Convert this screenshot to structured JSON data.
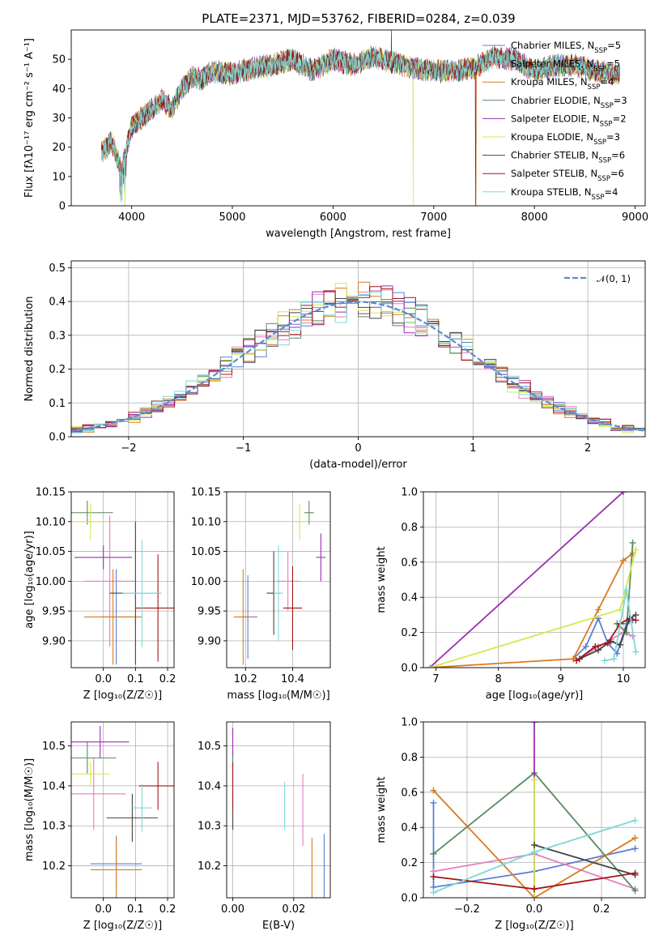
{
  "colors": {
    "chabrier_miles": "#5b7fd6",
    "salpeter_miles": "#e37fbf",
    "kroupa_miles": "#d97a20",
    "chabrier_elodie": "#5a8a5f",
    "salpeter_elodie": "#9a2fb0",
    "kroupa_elodie": "#d4e850",
    "chabrier_stelib": "#444444",
    "salpeter_stelib": "#a31515",
    "kroupa_stelib": "#7fd8d8",
    "normal_curve": "#5b8ad6"
  },
  "chart_data": [
    {
      "id": "spectrum",
      "type": "line",
      "title": "PLATE=2371, MJD=53762, FIBERID=0284, z=0.039",
      "xlabel": "wavelength [Angstrom, rest frame]",
      "ylabel": "Flux [fλ10⁻¹⁷ erg cm⁻² s⁻¹ A⁻¹]",
      "xlim": [
        3400,
        9100
      ],
      "ylim": [
        0,
        60
      ],
      "xticks": [
        "4000",
        "5000",
        "6000",
        "7000",
        "8000",
        "9000"
      ],
      "yticks": [
        "0",
        "10",
        "20",
        "30",
        "40",
        "50"
      ],
      "grid": false,
      "legend_position": "top-right",
      "x": [
        3700,
        3800,
        3900,
        4000,
        4100,
        4200,
        4300,
        4400,
        4500,
        4600,
        4700,
        4800,
        5000,
        5200,
        5400,
        5600,
        5800,
        6000,
        6200,
        6400,
        6600,
        6800,
        7000,
        7200,
        7400,
        7600,
        7800,
        8000,
        8200,
        8400,
        8600,
        8800
      ],
      "y": [
        18,
        22,
        12,
        27,
        30,
        33,
        36,
        33,
        40,
        44,
        43,
        46,
        45,
        47,
        48,
        50,
        46,
        50,
        48,
        51,
        49,
        47,
        46,
        46,
        47,
        51,
        50,
        46,
        48,
        48,
        46,
        45
      ],
      "series": [
        {
          "name": "Chabrier MILES, N",
          "sub": "SSP",
          "suffix": "=5",
          "color_key": "chabrier_miles"
        },
        {
          "name": "Salpeter MILES, N",
          "sub": "SSP",
          "suffix": "=5",
          "color_key": "salpeter_miles"
        },
        {
          "name": "Kroupa MILES, N",
          "sub": "SSP",
          "suffix": "=4",
          "color_key": "kroupa_miles"
        },
        {
          "name": "Chabrier ELODIE, N",
          "sub": "SSP",
          "suffix": "=3",
          "color_key": "chabrier_elodie"
        },
        {
          "name": "Salpeter ELODIE, N",
          "sub": "SSP",
          "suffix": "=2",
          "color_key": "salpeter_elodie"
        },
        {
          "name": "Kroupa ELODIE, N",
          "sub": "SSP",
          "suffix": "=3",
          "color_key": "kroupa_elodie"
        },
        {
          "name": "Chabrier STELIB, N",
          "sub": "SSP",
          "suffix": "=6",
          "color_key": "chabrier_stelib"
        },
        {
          "name": "Salpeter STELIB, N",
          "sub": "SSP",
          "suffix": "=6",
          "color_key": "salpeter_stelib"
        },
        {
          "name": "Kroupa STELIB, N",
          "sub": "SSP",
          "suffix": "=4",
          "color_key": "kroupa_stelib"
        }
      ]
    },
    {
      "id": "residuals",
      "type": "histogram",
      "xlabel": "(data-model)/error",
      "ylabel": "Normed distribution",
      "xlim": [
        -2.5,
        2.5
      ],
      "ylim": [
        0,
        0.52
      ],
      "xticks": [
        "−2",
        "−1",
        "0",
        "1",
        "2"
      ],
      "yticks": [
        "0.0",
        "0.1",
        "0.2",
        "0.3",
        "0.4",
        "0.5"
      ],
      "grid": true,
      "legend_position": "top-right",
      "legend_label": "𝒩(0, 1)",
      "bin_width": 0.1,
      "mean": 0,
      "sigma": 1
    },
    {
      "id": "age_vs_Z",
      "type": "errorbar",
      "xlabel": "Z [log₁₀(Z/Z☉)]",
      "ylabel": "age  [log₁₀(age/yr)]",
      "xlim": [
        -0.1,
        0.22
      ],
      "ylim": [
        9.855,
        10.15
      ],
      "xticks": [
        "0.0",
        "0.1",
        "0.2"
      ],
      "yticks": [
        "9.90",
        "9.95",
        "10.00",
        "10.05",
        "10.10",
        "10.15"
      ],
      "grid": true,
      "points": [
        {
          "c": "chabrier_miles",
          "x": 0.04,
          "y": 9.94,
          "xerr": 0.05,
          "yerr": 0.08
        },
        {
          "c": "salpeter_miles",
          "x": 0.02,
          "y": 10.0,
          "xerr": 0.08,
          "yerr": 0.11
        },
        {
          "c": "kroupa_miles",
          "x": 0.03,
          "y": 9.94,
          "xerr": 0.09,
          "yerr": 0.08
        },
        {
          "c": "chabrier_elodie",
          "x": -0.05,
          "y": 10.115,
          "xerr": 0.08,
          "yerr": 0.02
        },
        {
          "c": "salpeter_elodie",
          "x": 0.0,
          "y": 10.04,
          "xerr": 0.09,
          "yerr": 0.02
        },
        {
          "c": "kroupa_elodie",
          "x": -0.04,
          "y": 10.1,
          "xerr": 0.05,
          "yerr": 0.03
        },
        {
          "c": "chabrier_stelib",
          "x": 0.1,
          "y": 9.98,
          "xerr": 0.08,
          "yerr": 0.12
        },
        {
          "c": "salpeter_stelib",
          "x": 0.17,
          "y": 9.955,
          "xerr": 0.07,
          "yerr": 0.09
        },
        {
          "c": "kroupa_stelib",
          "x": 0.12,
          "y": 9.98,
          "xerr": 0.06,
          "yerr": 0.09
        }
      ]
    },
    {
      "id": "age_vs_mass",
      "type": "errorbar",
      "xlabel": "mass [log₁₀(M/M☉)]",
      "ylabel": "",
      "xlim": [
        10.12,
        10.56
      ],
      "ylim": [
        9.855,
        10.15
      ],
      "xticks": [
        "10.2",
        "10.4"
      ],
      "yticks": [
        "9.90",
        "9.95",
        "10.00",
        "10.05",
        "10.10",
        "10.15"
      ],
      "grid": true,
      "points": [
        {
          "c": "chabrier_miles",
          "x": 10.21,
          "y": 9.94,
          "xerr": 0.04,
          "yerr": 0.07
        },
        {
          "c": "salpeter_miles",
          "x": 10.38,
          "y": 10.0,
          "xerr": 0.05,
          "yerr": 0.05
        },
        {
          "c": "kroupa_miles",
          "x": 10.19,
          "y": 9.94,
          "xerr": 0.04,
          "yerr": 0.08
        },
        {
          "c": "chabrier_elodie",
          "x": 10.47,
          "y": 10.115,
          "xerr": 0.02,
          "yerr": 0.02
        },
        {
          "c": "salpeter_elodie",
          "x": 10.52,
          "y": 10.04,
          "xerr": 0.02,
          "yerr": 0.04
        },
        {
          "c": "kroupa_elodie",
          "x": 10.43,
          "y": 10.1,
          "xerr": 0.02,
          "yerr": 0.03
        },
        {
          "c": "chabrier_stelib",
          "x": 10.32,
          "y": 9.98,
          "xerr": 0.03,
          "yerr": 0.07
        },
        {
          "c": "salpeter_stelib",
          "x": 10.4,
          "y": 9.955,
          "xerr": 0.04,
          "yerr": 0.07
        },
        {
          "c": "kroupa_stelib",
          "x": 10.34,
          "y": 9.98,
          "xerr": 0.02,
          "yerr": 0.08
        }
      ]
    },
    {
      "id": "weight_vs_age",
      "type": "line",
      "xlabel": "age  [log₁₀(age/yr)]",
      "ylabel": "mass weight",
      "xlim": [
        6.8,
        10.35
      ],
      "ylim": [
        0,
        1.0
      ],
      "xticks": [
        "7",
        "8",
        "9",
        "10"
      ],
      "yticks": [
        "0.0",
        "0.2",
        "0.4",
        "0.6",
        "0.8",
        "1.0"
      ],
      "grid": true,
      "series": [
        {
          "c": "chabrier_miles",
          "x": [
            9.2,
            9.4,
            9.6,
            9.75,
            9.9,
            10.05,
            10.15
          ],
          "y": [
            0.05,
            0.12,
            0.28,
            0.14,
            0.08,
            0.25,
            0.27
          ]
        },
        {
          "c": "salpeter_miles",
          "x": [
            9.3,
            9.6,
            9.8,
            10.0,
            10.15
          ],
          "y": [
            0.05,
            0.12,
            0.16,
            0.2,
            0.18
          ]
        },
        {
          "c": "kroupa_miles",
          "x": [
            6.9,
            9.2,
            9.6,
            10.0,
            10.15
          ],
          "y": [
            0.0,
            0.05,
            0.33,
            0.61,
            0.65
          ]
        },
        {
          "c": "chabrier_elodie",
          "x": [
            9.9,
            10.05,
            10.15
          ],
          "y": [
            0.25,
            0.2,
            0.71
          ]
        },
        {
          "c": "salpeter_elodie",
          "x": [
            6.9,
            10.0
          ],
          "y": [
            0.0,
            1.0
          ]
        },
        {
          "c": "kroupa_elodie",
          "x": [
            6.9,
            9.95,
            10.2
          ],
          "y": [
            0.0,
            0.33,
            0.67
          ]
        },
        {
          "c": "chabrier_stelib",
          "x": [
            9.3,
            9.6,
            9.8,
            9.95,
            10.1,
            10.2
          ],
          "y": [
            0.05,
            0.1,
            0.15,
            0.13,
            0.28,
            0.3
          ]
        },
        {
          "c": "salpeter_stelib",
          "x": [
            9.25,
            9.55,
            9.75,
            9.95,
            10.1,
            10.2
          ],
          "y": [
            0.04,
            0.12,
            0.14,
            0.25,
            0.28,
            0.27
          ]
        },
        {
          "c": "kroupa_stelib",
          "x": [
            9.7,
            9.85,
            10.05,
            10.2
          ],
          "y": [
            0.04,
            0.05,
            0.44,
            0.09
          ]
        }
      ]
    },
    {
      "id": "mass_vs_Z",
      "type": "errorbar",
      "xlabel": "Z [log₁₀(Z/Z☉)]",
      "ylabel": "mass [log₁₀(M/M☉)]",
      "xlim": [
        -0.1,
        0.22
      ],
      "ylim": [
        10.12,
        10.56
      ],
      "xticks": [
        "0.0",
        "0.1",
        "0.2"
      ],
      "yticks": [
        "10.2",
        "10.3",
        "10.4",
        "10.5"
      ],
      "grid": true,
      "points": [
        {
          "c": "chabrier_miles",
          "x": 0.04,
          "y": 10.205,
          "xerr": 0.08,
          "yerr": 0.07
        },
        {
          "c": "salpeter_miles",
          "x": -0.03,
          "y": 10.38,
          "xerr": 0.1,
          "yerr": 0.09
        },
        {
          "c": "kroupa_miles",
          "x": 0.04,
          "y": 10.19,
          "xerr": 0.08,
          "yerr": 0.08
        },
        {
          "c": "chabrier_elodie",
          "x": -0.05,
          "y": 10.47,
          "xerr": 0.09,
          "yerr": 0.04
        },
        {
          "c": "salpeter_elodie",
          "x": -0.01,
          "y": 10.51,
          "xerr": 0.09,
          "yerr": 0.04
        },
        {
          "c": "kroupa_elodie",
          "x": -0.04,
          "y": 10.43,
          "xerr": 0.06,
          "yerr": 0.03
        },
        {
          "c": "chabrier_stelib",
          "x": 0.09,
          "y": 10.32,
          "xerr": 0.08,
          "yerr": 0.06
        },
        {
          "c": "salpeter_stelib",
          "x": 0.17,
          "y": 10.4,
          "xerr": 0.06,
          "yerr": 0.06
        },
        {
          "c": "kroupa_stelib",
          "x": 0.12,
          "y": 10.345,
          "xerr": 0.03,
          "yerr": 0.06
        }
      ]
    },
    {
      "id": "mass_vs_ebv",
      "type": "errorbar",
      "xlabel": "E(B-V)",
      "ylabel": "",
      "xlim": [
        -0.002,
        0.032
      ],
      "ylim": [
        10.12,
        10.56
      ],
      "xticks": [
        "0.00",
        "0.02"
      ],
      "yticks": [
        "10.2",
        "10.3",
        "10.4",
        "10.5"
      ],
      "grid": true,
      "points": [
        {
          "c": "chabrier_miles",
          "x": 0.03,
          "y": 10.2,
          "xerr": 0.0,
          "yerr": 0.08
        },
        {
          "c": "salpeter_miles",
          "x": 0.023,
          "y": 10.34,
          "xerr": 0.0,
          "yerr": 0.09
        },
        {
          "c": "kroupa_miles",
          "x": 0.026,
          "y": 10.19,
          "xerr": 0.0,
          "yerr": 0.08
        },
        {
          "c": "chabrier_elodie",
          "x": 0.0,
          "y": 10.47,
          "xerr": 0.0,
          "yerr": 0.02
        },
        {
          "c": "salpeter_elodie",
          "x": 0.0,
          "y": 10.51,
          "xerr": 0.0,
          "yerr": 0.035
        },
        {
          "c": "kroupa_elodie",
          "x": 0.0,
          "y": 10.43,
          "xerr": 0.0,
          "yerr": 0.03
        },
        {
          "c": "chabrier_stelib",
          "x": 0.0,
          "y": 10.33,
          "xerr": 0.0,
          "yerr": 0.04
        },
        {
          "c": "salpeter_stelib",
          "x": 0.0,
          "y": 10.4,
          "xerr": 0.0,
          "yerr": 0.06
        },
        {
          "c": "kroupa_stelib",
          "x": 0.017,
          "y": 10.35,
          "xerr": 0.0,
          "yerr": 0.06
        }
      ]
    },
    {
      "id": "weight_vs_Z",
      "type": "line",
      "xlabel": "Z [log₁₀(Z/Z☉)]",
      "ylabel": "mass weight",
      "xlim": [
        -0.33,
        0.33
      ],
      "ylim": [
        0,
        1.0
      ],
      "xticks": [
        "−0.2",
        "0.0",
        "0.2"
      ],
      "yticks": [
        "0.0",
        "0.2",
        "0.4",
        "0.6",
        "0.8",
        "1.0"
      ],
      "grid": true,
      "series": [
        {
          "c": "chabrier_miles",
          "x": [
            -0.3,
            -0.3,
            0.0,
            0.3
          ],
          "y": [
            0.54,
            0.06,
            0.15,
            0.28
          ]
        },
        {
          "c": "salpeter_miles",
          "x": [
            -0.3,
            0.0,
            0.3
          ],
          "y": [
            0.15,
            0.25,
            0.05
          ]
        },
        {
          "c": "kroupa_miles",
          "x": [
            -0.3,
            0.0,
            0.3
          ],
          "y": [
            0.61,
            0.0,
            0.34
          ]
        },
        {
          "c": "chabrier_elodie",
          "x": [
            -0.3,
            0.0,
            0.3
          ],
          "y": [
            0.25,
            0.71,
            0.04
          ]
        },
        {
          "c": "salpeter_elodie",
          "x": [
            0.0,
            0.0
          ],
          "y": [
            0.0,
            1.0
          ]
        },
        {
          "c": "kroupa_elodie",
          "x": [
            0.0,
            0.0
          ],
          "y": [
            0.0,
            0.67
          ]
        },
        {
          "c": "chabrier_stelib",
          "x": [
            0.0,
            0.3
          ],
          "y": [
            0.3,
            0.13
          ]
        },
        {
          "c": "salpeter_stelib",
          "x": [
            -0.3,
            0.0,
            0.3
          ],
          "y": [
            0.12,
            0.05,
            0.14
          ]
        },
        {
          "c": "kroupa_stelib",
          "x": [
            -0.3,
            0.0,
            0.3
          ],
          "y": [
            0.03,
            0.26,
            0.44
          ]
        }
      ]
    }
  ]
}
